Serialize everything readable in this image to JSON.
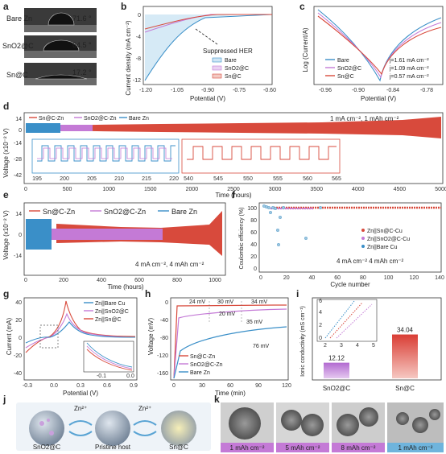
{
  "colors": {
    "bare": "#3a8fc8",
    "sno2": "#c47ad6",
    "snc": "#d84a3c",
    "bare_fill": "#cfe6f5",
    "sno2_fill": "#ead2f2",
    "snc_fill": "#f3c9c2"
  },
  "panel_a": {
    "label": "a",
    "rows": [
      {
        "name": "Bare Zn",
        "angle": "71.6 °"
      },
      {
        "name": "SnO2@C",
        "angle": "64.5 °"
      },
      {
        "name": "Sn@C",
        "angle": "17.2 °"
      }
    ]
  },
  "panel_b": {
    "label": "b",
    "ylabel": "Current density (mA cm⁻²)",
    "xlabel": "Potential (V)",
    "annotation": "Suppressed HER",
    "legend": [
      "Bare",
      "SnO2@C",
      "Sn@C"
    ],
    "xticks": [
      "-1.20",
      "-1.05",
      "-0.90",
      "-0.75",
      "-0.60"
    ],
    "yticks": [
      "0",
      "-4",
      "-8",
      "-12"
    ]
  },
  "panel_c": {
    "label": "c",
    "ylabel": "Log (Current/A)",
    "xlabel": "Potential (V)",
    "legend": [
      "Bare",
      "SnO2@C",
      "Sn@C"
    ],
    "values": [
      "j=1.61 mA cm⁻²",
      "j=1.09 mA cm⁻²",
      "j=0.57 mA cm⁻²"
    ],
    "xticks": [
      "-0.96",
      "-0.90",
      "-0.84",
      "-0.78"
    ]
  },
  "panel_d": {
    "label": "d",
    "ylabel": "Voltage (x10⁻² V)",
    "xlabel": "Time (hours)",
    "legend": [
      "Sn@C-Zn",
      "SnO2@C-Zn",
      "Bare Zn"
    ],
    "condition": "1 mA cm⁻²,   1 mAh cm⁻²",
    "yticks": [
      "14",
      "0",
      "-14",
      "-28",
      "-42"
    ],
    "xticks": [
      "0",
      "500",
      "1000",
      "1500",
      "2000",
      "2500",
      "3000",
      "3500",
      "4000",
      "4500",
      "5000"
    ],
    "inset1_ticks": [
      "195",
      "200",
      "205",
      "210",
      "215",
      "220"
    ],
    "inset2_ticks": [
      "540",
      "545",
      "550",
      "555",
      "560",
      "565"
    ]
  },
  "panel_e": {
    "label": "e",
    "ylabel": "Voltage (x10⁻² V)",
    "xlabel": "Time (hours)",
    "legend": [
      "Sn@C-Zn",
      "SnO2@C-Zn",
      "Bare Zn"
    ],
    "condition": "4 mA cm⁻²,   4 mAh cm⁻²",
    "yticks": [
      "14",
      "0",
      "-14"
    ],
    "xticks": [
      "0",
      "200",
      "400",
      "600",
      "800",
      "1000"
    ]
  },
  "panel_f": {
    "label": "f",
    "ylabel": "Coulombic efficiency (%)",
    "xlabel": "Cycle number",
    "legend": [
      "Zn||Sn@C-Cu",
      "Zn||SnO2@C-Cu",
      "Zn||Bare Cu"
    ],
    "condition": "4 mA cm⁻²  4 mAh cm⁻²",
    "yticks": [
      "100",
      "80",
      "60",
      "40",
      "20",
      "0"
    ],
    "xticks": [
      "0",
      "20",
      "40",
      "60",
      "80",
      "100",
      "120",
      "140"
    ]
  },
  "panel_g": {
    "label": "g",
    "ylabel": "Current (mA)",
    "xlabel": "Potential (V)",
    "legend": [
      "Zn||Bare Cu",
      "Zn||SnO2@C",
      "Zn||Sn@C"
    ],
    "xticks": [
      "-0.3",
      "0.0",
      "0.3",
      "0.6",
      "0.9"
    ],
    "yticks": [
      "40",
      "20",
      "0",
      "-20",
      "-40"
    ],
    "inset_xticks": [
      "-0.1",
      "0.0"
    ]
  },
  "panel_h": {
    "label": "h",
    "ylabel": "Voltage (mV)",
    "xlabel": "Time (min)",
    "legend": [
      "Sn@C-Zn",
      "SnO2@C-Zn",
      "Bare Zn"
    ],
    "notes": [
      "24 mV",
      "30 mV",
      "34 mV",
      "20 mV",
      "35 mV",
      "76 mV"
    ],
    "xticks": [
      "0",
      "30",
      "60",
      "90",
      "120"
    ],
    "yticks": [
      "0",
      "-40",
      "-80",
      "-120",
      "-160"
    ]
  },
  "panel_i": {
    "label": "i",
    "ylabel": "Ionic conductivity (mS cm⁻¹)",
    "categories": [
      "SnO2@C",
      "Sn@C"
    ],
    "values": [
      12.12,
      34.04
    ],
    "value_labels": [
      "12.12",
      "34.04"
    ],
    "inset_xticks": [
      "2",
      "3",
      "4",
      "5"
    ],
    "inset_yticks": [
      "0",
      "2",
      "4",
      "6"
    ]
  },
  "panel_j": {
    "label": "j",
    "ion": "Zn²⁺",
    "labels": [
      "SnO2@C",
      "Pristine host",
      "Sn@C"
    ]
  },
  "panel_k": {
    "label": "k",
    "captions": [
      "1 mAh cm⁻²",
      "5 mAh cm⁻²",
      "8 mAh cm⁻²",
      "1 mAh cm⁻²"
    ]
  }
}
